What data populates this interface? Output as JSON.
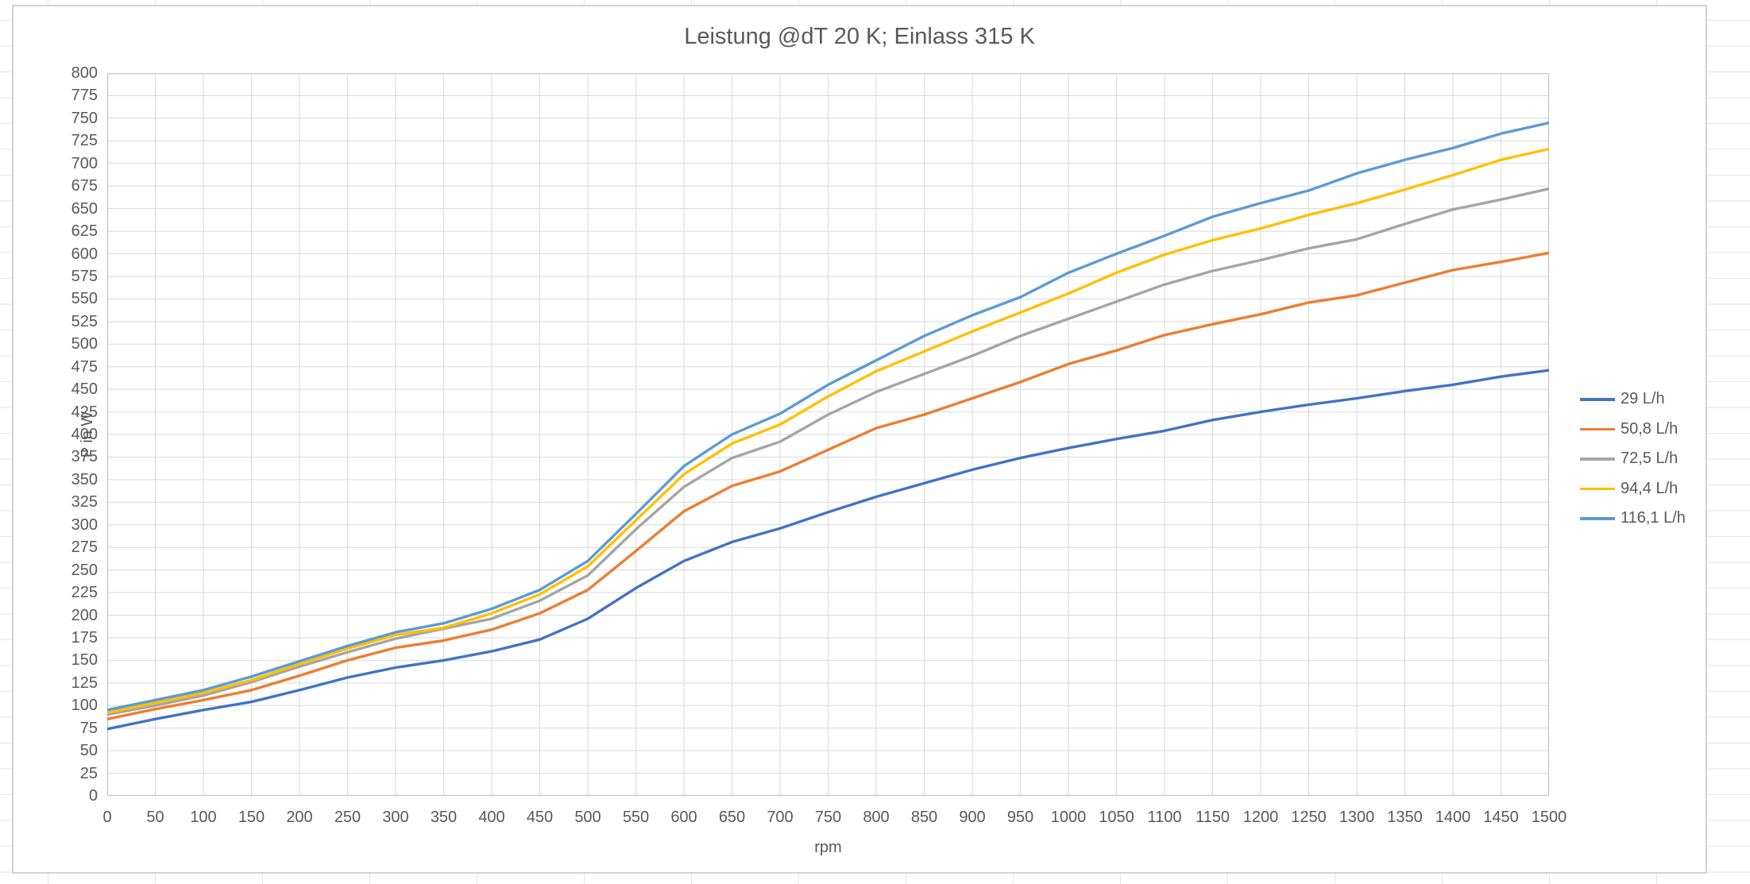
{
  "chart_data": {
    "type": "line",
    "title": "Leistung @dT 20 K; Einlass 315 K",
    "xlabel": "rpm",
    "ylabel": "P in W",
    "xlim": [
      0,
      1500
    ],
    "ylim": [
      0,
      800
    ],
    "x_tick_step": 50,
    "y_tick_step": 25,
    "grid": true,
    "legend_position": "right",
    "gridline_color": "#d9d9d9",
    "axis_line_color": "#c6c6c6",
    "text_color": "#595959",
    "x": [
      0,
      50,
      100,
      150,
      200,
      250,
      300,
      350,
      400,
      450,
      500,
      550,
      600,
      650,
      700,
      750,
      800,
      850,
      900,
      950,
      1000,
      1050,
      1100,
      1150,
      1200,
      1250,
      1300,
      1350,
      1400,
      1450,
      1500
    ],
    "series": [
      {
        "name": "29 L/h",
        "color": "#4472C4",
        "values": [
          74,
          85,
          95,
          104,
          117,
          131,
          142,
          150,
          160,
          173,
          196,
          230,
          260,
          281,
          296,
          314,
          331,
          346,
          361,
          374,
          385,
          395,
          404,
          416,
          425,
          433,
          440,
          448,
          455,
          464,
          471
        ]
      },
      {
        "name": "50,8 L/h",
        "color": "#ED7D31",
        "values": [
          85,
          96,
          106,
          117,
          133,
          150,
          164,
          172,
          184,
          202,
          228,
          271,
          315,
          343,
          359,
          383,
          407,
          422,
          440,
          458,
          478,
          493,
          510,
          522,
          533,
          546,
          554,
          568,
          582,
          591,
          601
        ]
      },
      {
        "name": "72,5 L/h",
        "color": "#A5A5A5",
        "values": [
          90,
          100,
          111,
          126,
          143,
          159,
          174,
          185,
          196,
          216,
          244,
          295,
          342,
          374,
          392,
          422,
          447,
          467,
          487,
          509,
          528,
          547,
          566,
          581,
          593,
          606,
          616,
          633,
          649,
          660,
          672
        ]
      },
      {
        "name": "94,4 L/h",
        "color": "#FFC000",
        "values": [
          92,
          103,
          114,
          128,
          146,
          163,
          178,
          186,
          202,
          223,
          254,
          305,
          356,
          390,
          411,
          442,
          470,
          492,
          514,
          535,
          556,
          579,
          599,
          615,
          628,
          643,
          656,
          671,
          687,
          704,
          716
        ]
      },
      {
        "name": "116,1 L/h",
        "color": "#5B9BD5",
        "values": [
          95,
          106,
          117,
          132,
          149,
          166,
          181,
          191,
          207,
          228,
          260,
          312,
          365,
          400,
          423,
          455,
          482,
          509,
          532,
          552,
          579,
          600,
          620,
          641,
          656,
          670,
          689,
          704,
          717,
          733,
          745
        ]
      }
    ]
  }
}
